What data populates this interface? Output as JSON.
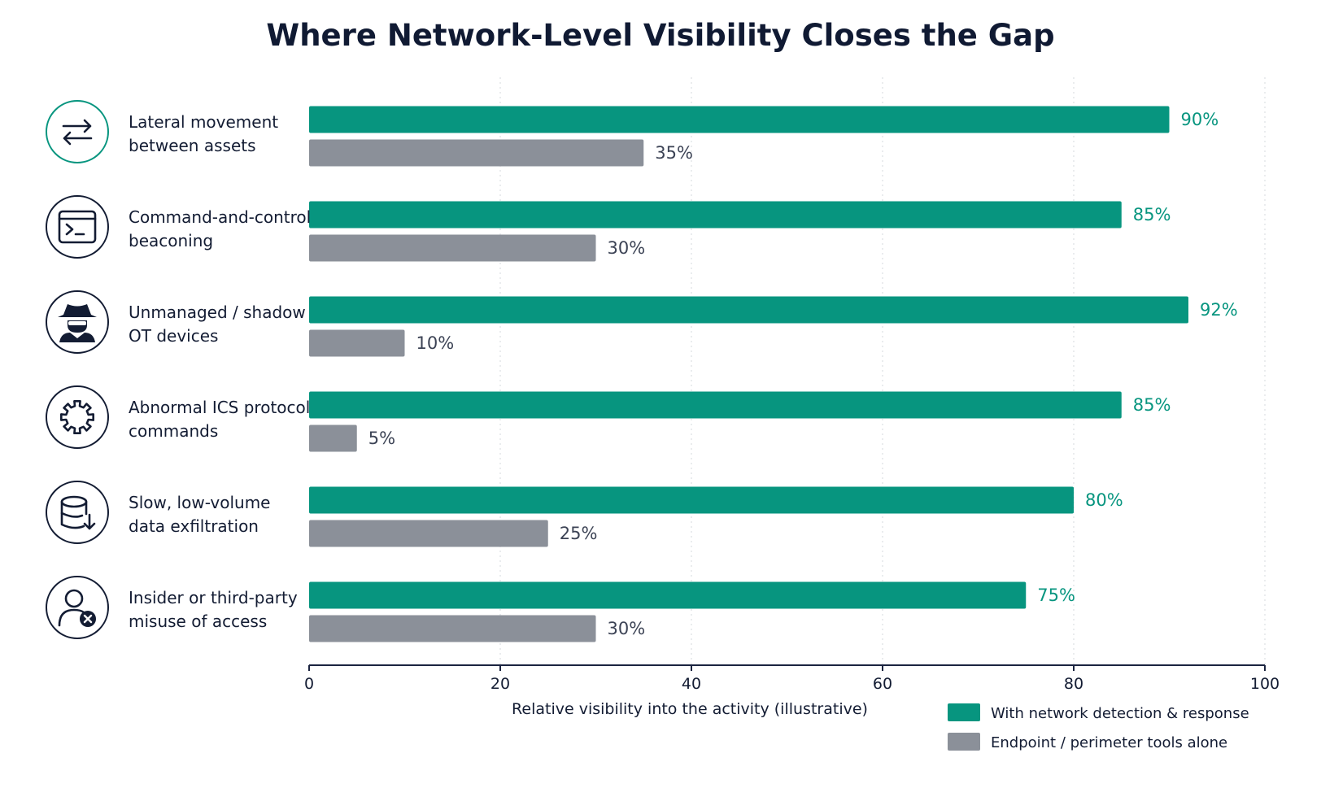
{
  "chart_data": {
    "type": "bar",
    "orientation": "horizontal",
    "title": "Where Network-Level Visibility Closes the Gap",
    "xlabel": "Relative visibility into the activity (illustrative)",
    "xlim": [
      0,
      100
    ],
    "xticks": [
      0,
      20,
      40,
      60,
      80,
      100
    ],
    "grid": true,
    "legend_position": "bottom-right",
    "categories": [
      {
        "label_lines": [
          "Lateral movement",
          "between assets"
        ],
        "icon": "arrows-exchange-icon"
      },
      {
        "label_lines": [
          "Command-and-control",
          "beaconing"
        ],
        "icon": "terminal-window-icon"
      },
      {
        "label_lines": [
          "Unmanaged / shadow",
          "OT devices"
        ],
        "icon": "spy-incognito-icon"
      },
      {
        "label_lines": [
          "Abnormal ICS protocol",
          "commands"
        ],
        "icon": "gear-icon"
      },
      {
        "label_lines": [
          "Slow, low-volume",
          "data exfiltration"
        ],
        "icon": "database-download-icon"
      },
      {
        "label_lines": [
          "Insider or third-party",
          "misuse of access"
        ],
        "icon": "user-blocked-icon"
      }
    ],
    "series": [
      {
        "name": "With network detection & response",
        "color": "#07957f",
        "values": [
          90,
          85,
          92,
          85,
          80,
          75
        ],
        "labels": [
          "90%",
          "85%",
          "92%",
          "85%",
          "80%",
          "75%"
        ]
      },
      {
        "name": "Endpoint / perimeter tools alone",
        "color": "#8b9099",
        "values": [
          35,
          30,
          10,
          5,
          25,
          30
        ],
        "labels": [
          "35%",
          "30%",
          "10%",
          "5%",
          "25%",
          "30%"
        ]
      }
    ],
    "colors": {
      "accent": "#07957f",
      "muted": "#8b9099",
      "text": "#131c33",
      "muted_text": "#3c4355"
    }
  }
}
